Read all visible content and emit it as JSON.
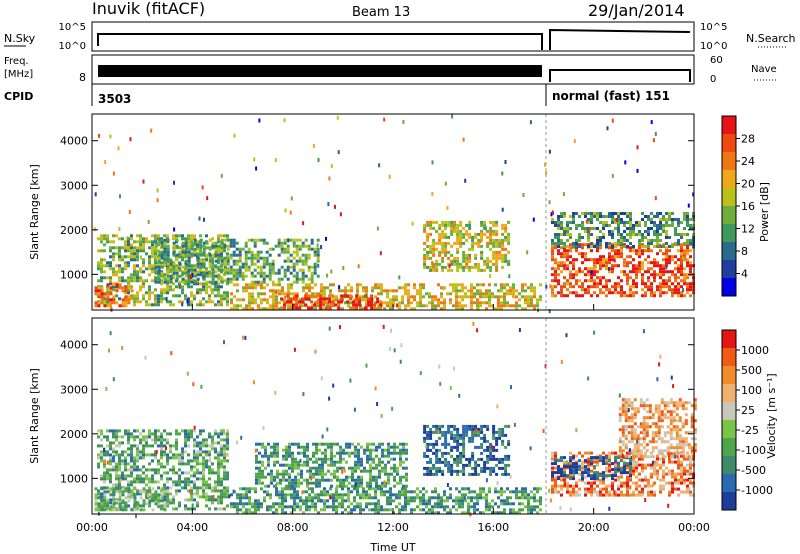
{
  "header": {
    "title": "Inuvik (fitACF)",
    "beam": "Beam 13",
    "date": "29/Jan/2014"
  },
  "params": {
    "nsky_label": "N.Sky",
    "nsearch_label": "N.Search",
    "freq_label_line1": "Freq.",
    "freq_label_line2": "[MHz]",
    "nave_label": "Nave",
    "cpid_label": "CPID",
    "nsky_ticks": [
      "10^5",
      "10^0"
    ],
    "nsearch_ticks": [
      "10^5",
      "10^0"
    ],
    "freq_ticks": [
      "8"
    ],
    "nave_ticks": [
      "60",
      "0"
    ],
    "cpid_segment_1": "3503",
    "cpid_segment_2": "normal (fast) 151",
    "switch_hour": 18.1
  },
  "chart_data": [
    {
      "type": "heatmap",
      "panel": "power",
      "ylabel": "Slant Range [km]",
      "y_ticks": [
        1000,
        2000,
        3000,
        4000
      ],
      "ylim": [
        200,
        4600
      ],
      "xlim": [
        0,
        24
      ],
      "colorbar_label": "Power [dB]",
      "colorbar_ticks": [
        "28",
        "24",
        "20",
        "16",
        "12",
        "8",
        "4"
      ],
      "colors": [
        "#0000e6",
        "#1f3ea0",
        "#2a6a8a",
        "#3f9a5c",
        "#6fae3a",
        "#b9c21a",
        "#f0a81a",
        "#f07814",
        "#ee4a12",
        "#e61414"
      ],
      "blobs": [
        {
          "x0": 0.2,
          "x1": 5.4,
          "y0": 300,
          "y1": 1900,
          "level": 0.45
        },
        {
          "x0": 0.1,
          "x1": 1.6,
          "y0": 300,
          "y1": 800,
          "level": 0.8
        },
        {
          "x0": 5.5,
          "x1": 17.9,
          "y0": 250,
          "y1": 800,
          "level": 0.6
        },
        {
          "x0": 7.5,
          "x1": 11.5,
          "y0": 250,
          "y1": 550,
          "level": 0.9
        },
        {
          "x0": 13.2,
          "x1": 16.6,
          "y0": 1100,
          "y1": 2200,
          "level": 0.55
        },
        {
          "x0": 18.3,
          "x1": 24,
          "y0": 500,
          "y1": 1700,
          "level": 0.85
        },
        {
          "x0": 18.3,
          "x1": 24,
          "y0": 1600,
          "y1": 2400,
          "level": 0.35
        },
        {
          "x0": 2.5,
          "x1": 9.0,
          "y0": 800,
          "y1": 1800,
          "level": 0.4
        }
      ]
    },
    {
      "type": "heatmap",
      "panel": "velocity",
      "xlabel": "Time UT",
      "ylabel": "Slant Range [km]",
      "x_ticks": [
        "00:00",
        "04:00",
        "08:00",
        "12:00",
        "16:00",
        "20:00",
        "00:00"
      ],
      "y_ticks": [
        1000,
        2000,
        3000,
        4000
      ],
      "ylim": [
        200,
        4600
      ],
      "xlim": [
        0,
        24
      ],
      "colorbar_label": "Velocity [m s⁻¹]",
      "colorbar_ticks": [
        "1000",
        "500",
        "100",
        "25",
        "-25",
        "-100",
        "-500",
        "-1000"
      ],
      "colors": [
        "#1e3c9a",
        "#2a6ab0",
        "#3f8a6a",
        "#4fa64a",
        "#7bc44a",
        "#c8c8b8",
        "#f0b070",
        "#f08a2a",
        "#f05a14",
        "#e61414"
      ],
      "blobs": [
        {
          "x0": 0.2,
          "x1": 5.4,
          "y0": 300,
          "y1": 2100,
          "level": 0.35
        },
        {
          "x0": 0.1,
          "x1": 3.0,
          "y0": 300,
          "y1": 800,
          "level": 0.4
        },
        {
          "x0": 5.5,
          "x1": 17.9,
          "y0": 250,
          "y1": 800,
          "level": 0.3
        },
        {
          "x0": 13.2,
          "x1": 16.6,
          "y0": 1100,
          "y1": 2200,
          "level": 0.15
        },
        {
          "x0": 18.3,
          "x1": 24,
          "y0": 600,
          "y1": 1600,
          "level": 0.75
        },
        {
          "x0": 18.3,
          "x1": 21.5,
          "y0": 1000,
          "y1": 1500,
          "level": 0.1
        },
        {
          "x0": 21.0,
          "x1": 24,
          "y0": 1500,
          "y1": 2800,
          "level": 0.7
        },
        {
          "x0": 6.5,
          "x1": 12.5,
          "y0": 800,
          "y1": 1800,
          "level": 0.3
        }
      ]
    }
  ]
}
